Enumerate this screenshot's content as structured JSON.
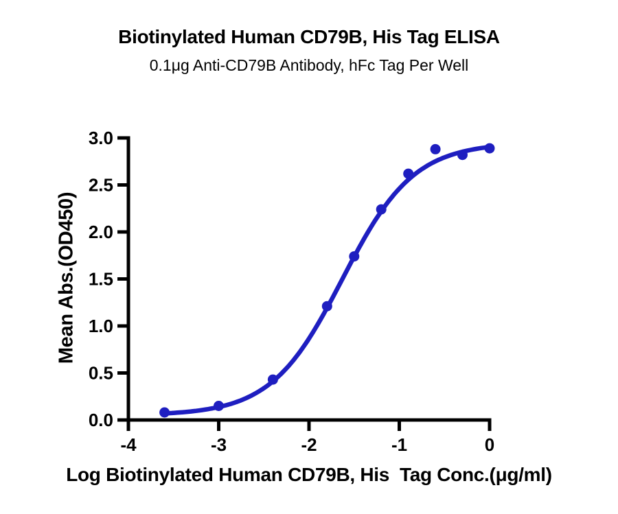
{
  "chart_data": {
    "type": "scatter",
    "title": "Biotinylated Human CD79B, His Tag ELISA",
    "subtitle": "0.1μg Anti-CD79B Antibody, hFc Tag Per Well",
    "xlabel": "Log Biotinylated Human CD79B, His  Tag Conc.(μg/ml)",
    "ylabel": "Mean Abs.(OD450)",
    "xlim": [
      -4,
      0
    ],
    "ylim": [
      0,
      3
    ],
    "x_ticks": [
      "-4",
      "-3",
      "-2",
      "-1",
      "0"
    ],
    "x_tick_values": [
      -4,
      -3,
      -2,
      -1,
      0
    ],
    "y_ticks": [
      "0.0",
      "0.5",
      "1.0",
      "1.5",
      "2.0",
      "2.5",
      "3.0"
    ],
    "y_tick_values": [
      0,
      0.5,
      1,
      1.5,
      2,
      2.5,
      3
    ],
    "grid": false,
    "legend": false,
    "series": [
      {
        "name": "Biotinylated Human CD79B, His Tag",
        "x": [
          -3.6,
          -3.0,
          -2.4,
          -1.8,
          -1.5,
          -1.2,
          -0.9,
          -0.6,
          -0.3,
          0.0
        ],
        "y": [
          0.08,
          0.15,
          0.43,
          1.21,
          1.74,
          2.24,
          2.62,
          2.88,
          2.82,
          2.89
        ]
      }
    ],
    "fit_curve": {
      "model": "4PL-sigmoid",
      "bottom": 0.05,
      "top": 2.95,
      "log_ec50": -1.63,
      "hill_slope": 1.1,
      "x_start": -3.61,
      "x_end": 0.0
    },
    "colors": {
      "curve": "#1E1EC0",
      "points": "#1E1EC0",
      "axis": "#000000",
      "text": "#000000"
    }
  }
}
